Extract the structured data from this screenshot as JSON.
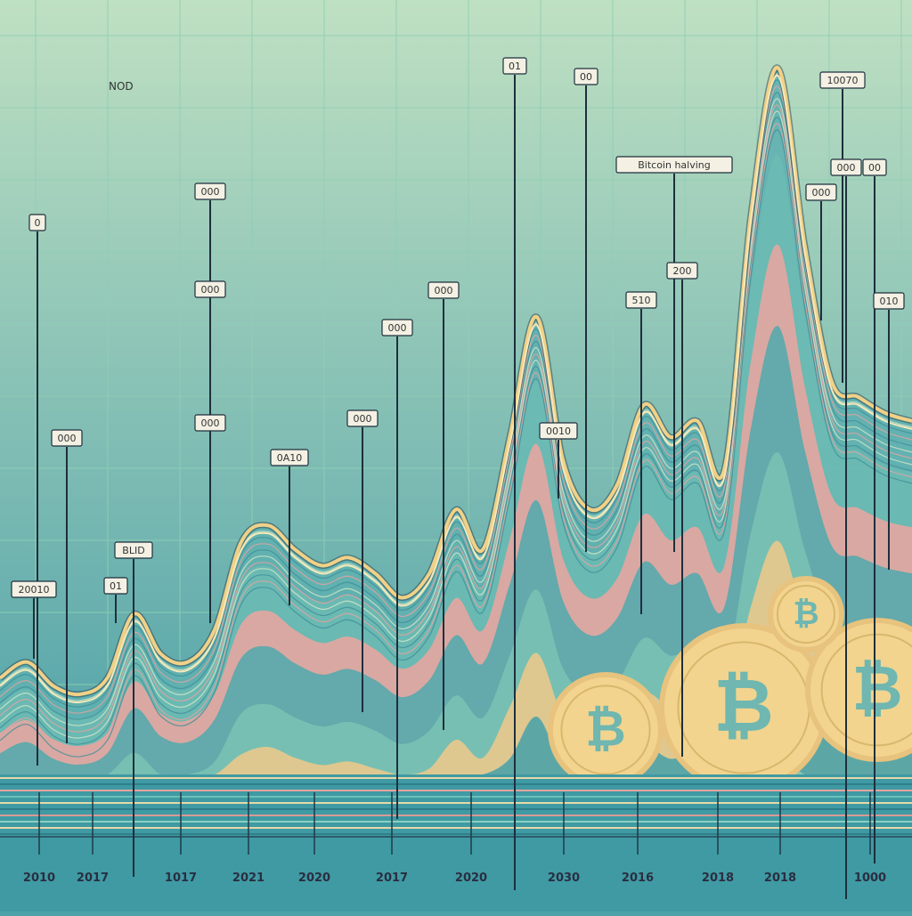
{
  "chart_data": {
    "type": "area",
    "title": "",
    "xlabel": "",
    "ylabel": "",
    "corner_text": "NOD",
    "x_tick_labels": [
      "2010",
      "2017",
      "1017",
      "2021",
      "2020",
      "2017",
      "2020",
      "2030",
      "2016",
      "2018",
      "2018",
      "1000"
    ],
    "series": [
      {
        "values": [
          12,
          14,
          11,
          10,
          12,
          20,
          15,
          14,
          18,
          29,
          31,
          28,
          26,
          27,
          25,
          22,
          25,
          33,
          28,
          42,
          57,
          39,
          33,
          36,
          46,
          42,
          44,
          38,
          70,
          88,
          66,
          49,
          47,
          45,
          44
        ]
      }
    ],
    "annotations": [
      {
        "text": "0"
      },
      {
        "text": "000"
      },
      {
        "text": "20010"
      },
      {
        "text": "01"
      },
      {
        "text": "BLID"
      },
      {
        "text": "000"
      },
      {
        "text": "000"
      },
      {
        "text": "000"
      },
      {
        "text": "0A10"
      },
      {
        "text": "000"
      },
      {
        "text": "000"
      },
      {
        "text": "000"
      },
      {
        "text": "01"
      },
      {
        "text": "00"
      },
      {
        "text": "0010"
      },
      {
        "text": "Bitcoin halving"
      },
      {
        "text": "510"
      },
      {
        "text": "200"
      },
      {
        "text": "10070"
      },
      {
        "text": "000"
      },
      {
        "text": "000"
      },
      {
        "text": "00"
      },
      {
        "text": "010"
      }
    ],
    "colors": {
      "background_top": "#bfe0c2",
      "background_bottom": "#3e98a5",
      "grid": "#8fcfb4",
      "main_line": "#f1d187",
      "pink_band": "#e9a3a0",
      "teal_band": "#5fb6b4",
      "coin": "#f2d48f",
      "coin_rim": "#e7c37d",
      "coin_symbol": "#6fb7b0",
      "baseline": "#e7d8a8"
    }
  }
}
